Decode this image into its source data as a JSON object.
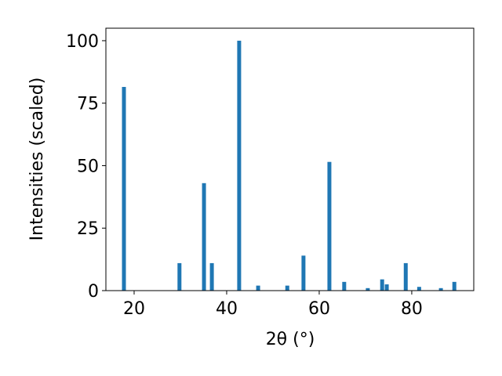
{
  "chart_data": {
    "type": "bar",
    "xlabel": "2θ (°)",
    "ylabel": "Intensities (scaled)",
    "x": [
      17.8,
      29.8,
      35.1,
      36.8,
      42.7,
      46.8,
      53.1,
      56.6,
      62.2,
      65.4,
      70.5,
      73.6,
      74.6,
      78.7,
      81.6,
      86.3,
      89.2
    ],
    "values": [
      81.5,
      11,
      43,
      11,
      100,
      2,
      2,
      14,
      51.5,
      3.5,
      1,
      4.5,
      2.5,
      11,
      1.5,
      1,
      3.5
    ],
    "color": "#1f77b4",
    "xlim": [
      13.9,
      93.4
    ],
    "ylim": [
      0,
      105
    ],
    "xticks": [
      20,
      40,
      60,
      80
    ],
    "yticks": [
      0,
      25,
      50,
      75,
      100
    ]
  }
}
